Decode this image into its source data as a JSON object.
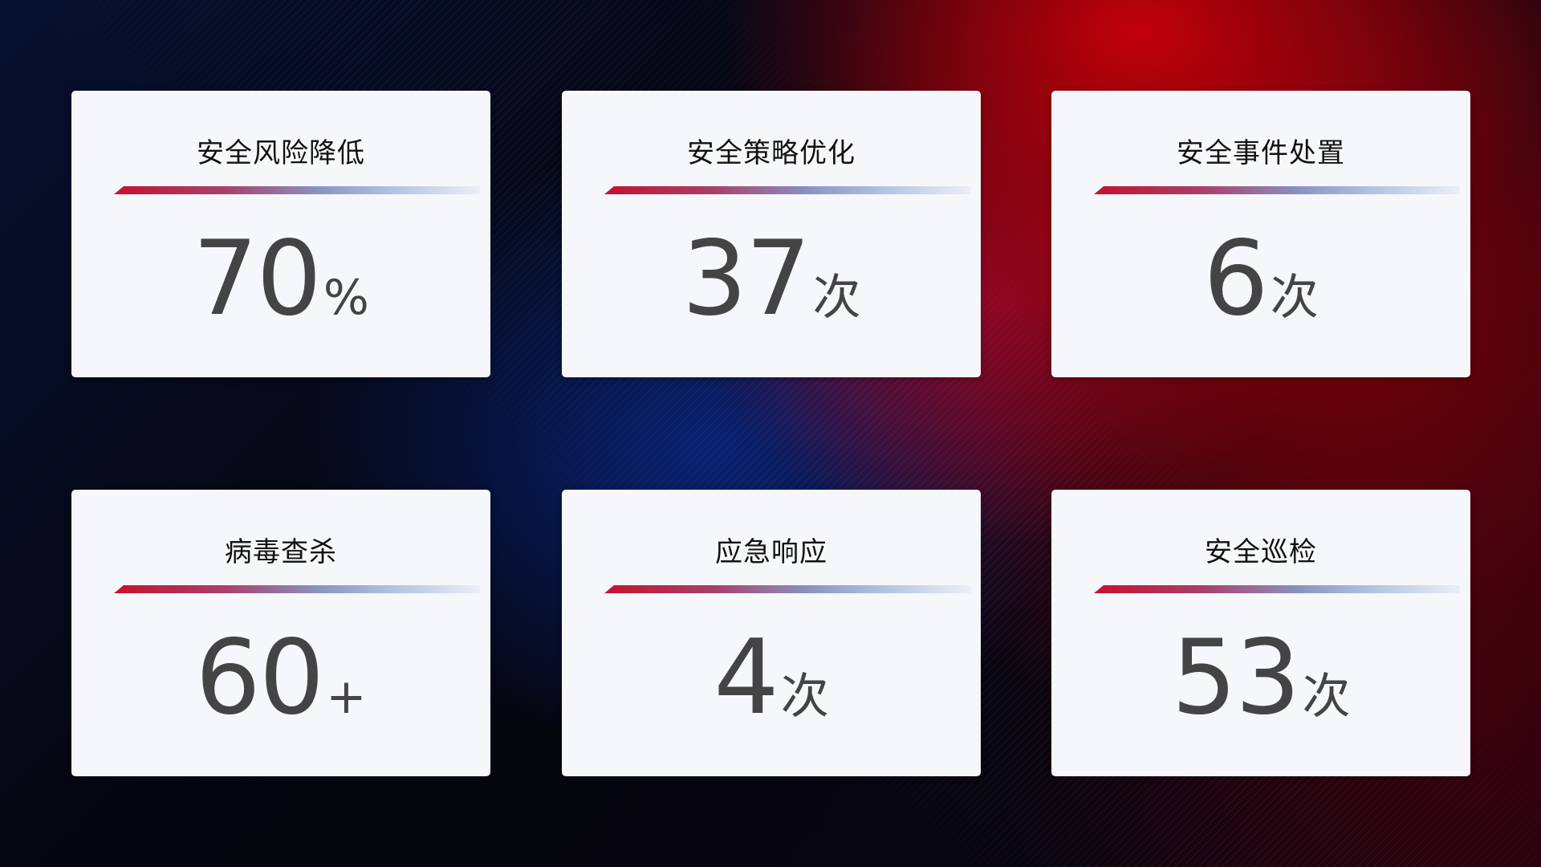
{
  "colors": {
    "accent_red": "#c8102e",
    "accent_blue": "#8a8fc0",
    "card_bg": "#f6f7fb",
    "value_text": "#444444"
  },
  "cards": [
    {
      "title": "安全风险降低",
      "value": "70",
      "unit": "%"
    },
    {
      "title": "安全策略优化",
      "value": "37",
      "unit": "次"
    },
    {
      "title": "安全事件处置",
      "value": "6",
      "unit": "次"
    },
    {
      "title": "病毒查杀",
      "value": "60",
      "unit": "+"
    },
    {
      "title": "应急响应",
      "value": "4",
      "unit": "次"
    },
    {
      "title": "安全巡检",
      "value": "53",
      "unit": "次"
    }
  ]
}
